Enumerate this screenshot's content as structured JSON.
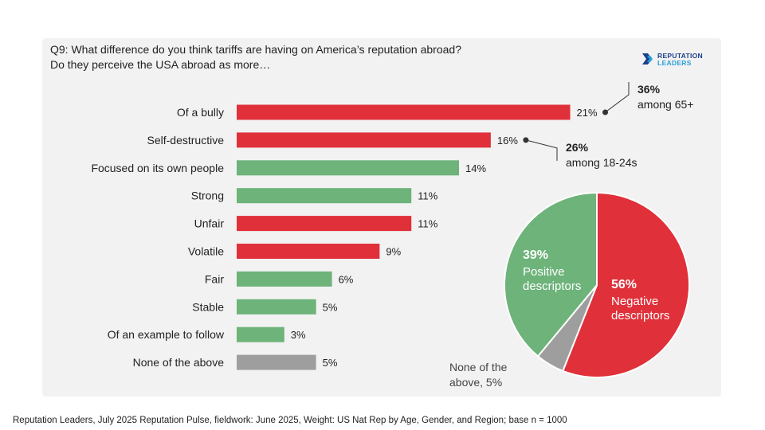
{
  "question": {
    "line1": "Q9: What difference do you think tariffs are having on America’s reputation abroad?",
    "line2": "Do they perceive the USA abroad as more…"
  },
  "logo": {
    "line1": "REPUTATION",
    "line2": "LEADERS"
  },
  "colors": {
    "negative": "#e0303a",
    "positive": "#6db37a",
    "neutral": "#9e9e9e",
    "panel": "#f2f2f2"
  },
  "chart_data": [
    {
      "type": "bar",
      "orientation": "horizontal",
      "categories": [
        "Of a bully",
        "Self-destructive",
        "Focused on its own people",
        "Strong",
        "Unfair",
        "Volatile",
        "Fair",
        "Stable",
        "Of an example to follow",
        "None of the above"
      ],
      "values": [
        21,
        16,
        14,
        11,
        11,
        9,
        6,
        5,
        3,
        5
      ],
      "value_labels": [
        "21%",
        "16%",
        "14%",
        "11%",
        "11%",
        "9%",
        "6%",
        "5%",
        "3%",
        "5%"
      ],
      "bar_colors": [
        "negative",
        "negative",
        "positive",
        "positive",
        "negative",
        "negative",
        "positive",
        "positive",
        "positive",
        "neutral"
      ],
      "annotations": [
        {
          "category": "Of a bully",
          "value": "36%",
          "text": "among 65+"
        },
        {
          "category": "Self-destructive",
          "value": "26%",
          "text": "among 18-24s"
        }
      ]
    },
    {
      "type": "pie",
      "slices": [
        {
          "name": "Negative descriptors",
          "value": 56,
          "label_value": "56%",
          "label_line1": "Negative",
          "label_line2": "descriptors",
          "color": "negative"
        },
        {
          "name": "None of the above",
          "value": 5,
          "label_line1": "None of the",
          "label_line2": "above, 5%",
          "color": "neutral"
        },
        {
          "name": "Positive descriptors",
          "value": 39,
          "label_value": "39%",
          "label_line1": "Positive",
          "label_line2": "descriptors",
          "color": "positive"
        }
      ]
    }
  ],
  "footer": "Reputation Leaders, July 2025 Reputation Pulse, fieldwork: June 2025, Weight: US Nat Rep by Age, Gender, and Region; base n = 1000"
}
